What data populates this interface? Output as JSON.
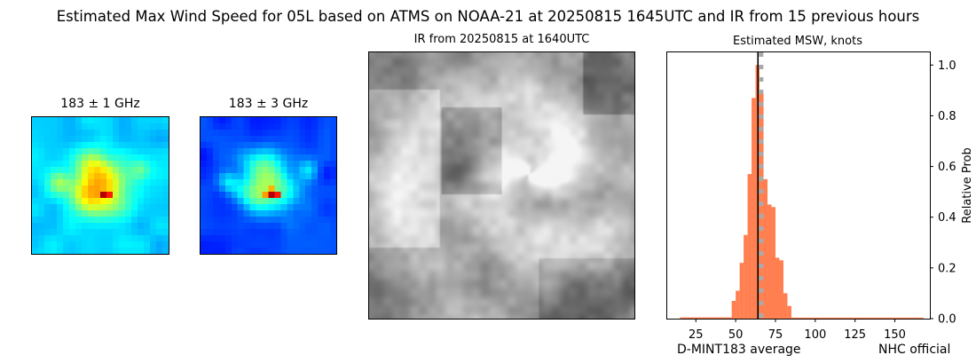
{
  "figure": {
    "suptitle": "Estimated Max Wind Speed for 05L based on ATMS on NOAA-21 at 20250815 1645UTC and IR from 15 previous hours"
  },
  "panels": {
    "mw1_title": "183 ± 1 GHz",
    "mw3_title": "183 ± 3 GHz",
    "ir_title": "IR from 20250815 at 1640UTC"
  },
  "chart_data": {
    "type": "bar",
    "title": "Estimated MSW, knots",
    "xlabel": "",
    "ylabel": "Relative Prob",
    "xlim": [
      7,
      172
    ],
    "ylim": [
      0,
      1.05
    ],
    "x_ticks": [
      25,
      50,
      75,
      100,
      125,
      150
    ],
    "y_ticks": [
      0.0,
      0.2,
      0.4,
      0.6,
      0.8,
      1.0
    ],
    "y_tick_labels": [
      "0.0",
      "0.2",
      "0.4",
      "0.6",
      "0.8",
      "1.0"
    ],
    "y_axis_side": "right",
    "bar_color": "#ff7f50",
    "bin_width": 2.5,
    "bins": [
      {
        "x0": 15,
        "x1": 47.5,
        "value": 0.005
      },
      {
        "x0": 47.5,
        "x1": 50,
        "value": 0.07
      },
      {
        "x0": 50,
        "x1": 52.5,
        "value": 0.11
      },
      {
        "x0": 52.5,
        "x1": 55,
        "value": 0.22
      },
      {
        "x0": 55,
        "x1": 57.5,
        "value": 0.33
      },
      {
        "x0": 57.5,
        "x1": 60,
        "value": 0.57
      },
      {
        "x0": 60,
        "x1": 62.5,
        "value": 0.87
      },
      {
        "x0": 62.5,
        "x1": 65,
        "value": 1.0
      },
      {
        "x0": 65,
        "x1": 67.5,
        "value": 0.89
      },
      {
        "x0": 67.5,
        "x1": 70,
        "value": 0.55
      },
      {
        "x0": 70,
        "x1": 72.5,
        "value": 0.45
      },
      {
        "x0": 72.5,
        "x1": 75,
        "value": 0.44
      },
      {
        "x0": 75,
        "x1": 77.5,
        "value": 0.24
      },
      {
        "x0": 77.5,
        "x1": 80,
        "value": 0.23
      },
      {
        "x0": 80,
        "x1": 82.5,
        "value": 0.1
      },
      {
        "x0": 82.5,
        "x1": 85,
        "value": 0.05
      },
      {
        "x0": 85,
        "x1": 168,
        "value": 0.004
      }
    ],
    "lines": [
      {
        "name": "D-MINT183 average",
        "x": 64,
        "style": "solid",
        "color": "#000000"
      },
      {
        "name": "NHC official",
        "x": 66,
        "style": "dotted",
        "color": "#aaaaaa"
      }
    ],
    "legend_position": "bottom-right"
  },
  "colors": {
    "mw_colormap": "jet",
    "ir_colormap": "gray"
  }
}
